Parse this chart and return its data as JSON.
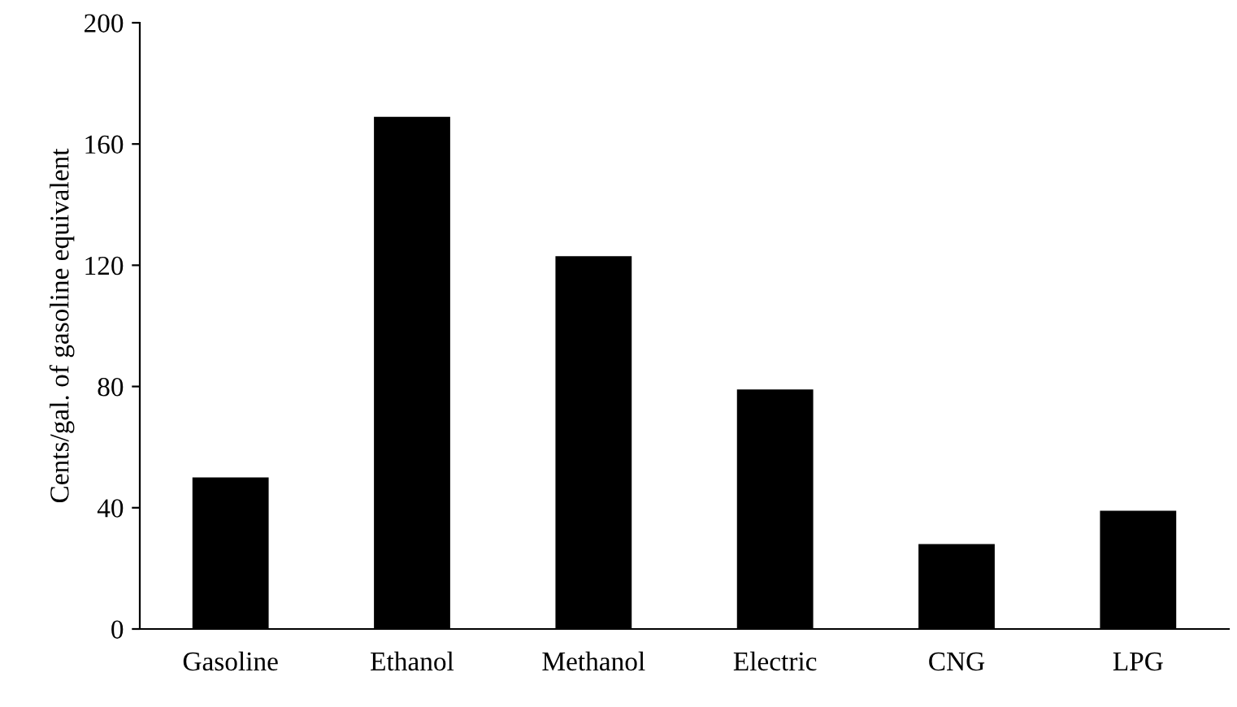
{
  "chart_data": {
    "type": "bar",
    "ylabel": "Cents/gal. of gasoline equivalent",
    "categories": [
      "Gasoline",
      "Ethanol",
      "Methanol",
      "Electric",
      "CNG",
      "LPG"
    ],
    "values": [
      50,
      169,
      123,
      79,
      28,
      39
    ],
    "color": "#000000",
    "ylim": [
      0,
      200
    ],
    "yticks": [
      0,
      40,
      80,
      120,
      160,
      200
    ],
    "grid": false,
    "legend": false
  }
}
